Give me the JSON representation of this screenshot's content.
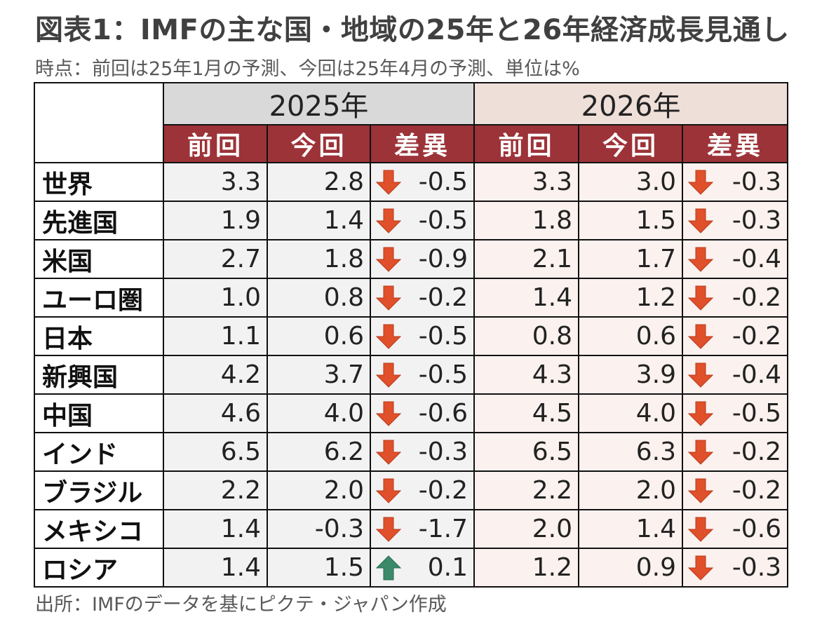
{
  "title": "図表1：IMFの主な国・地域の25年と26年経済成長見通し",
  "subtitle": "時点：前回は25年1月の予測、今回は25年4月の予測、単位は%",
  "source": "出所：IMFのデータを基にピクテ・ジャパン作成",
  "colors": {
    "header_red": "#9c3338",
    "year2025_bg": "#d9d9d9",
    "year2026_bg": "#eedfd8",
    "down_arrow": "#e0502a",
    "up_arrow": "#3a8a6a"
  },
  "chart_data": {
    "type": "table",
    "years": [
      "2025年",
      "2026年"
    ],
    "columns": [
      "前回",
      "今回",
      "差異"
    ],
    "rows": [
      {
        "name": "世界",
        "y2025": {
          "prev": "3.3",
          "curr": "2.8",
          "diff": "-0.5",
          "dir": "down"
        },
        "y2026": {
          "prev": "3.3",
          "curr": "3.0",
          "diff": "-0.3",
          "dir": "down"
        }
      },
      {
        "name": "先進国",
        "y2025": {
          "prev": "1.9",
          "curr": "1.4",
          "diff": "-0.5",
          "dir": "down"
        },
        "y2026": {
          "prev": "1.8",
          "curr": "1.5",
          "diff": "-0.3",
          "dir": "down"
        }
      },
      {
        "name": "米国",
        "y2025": {
          "prev": "2.7",
          "curr": "1.8",
          "diff": "-0.9",
          "dir": "down"
        },
        "y2026": {
          "prev": "2.1",
          "curr": "1.7",
          "diff": "-0.4",
          "dir": "down"
        }
      },
      {
        "name": "ユーロ圏",
        "y2025": {
          "prev": "1.0",
          "curr": "0.8",
          "diff": "-0.2",
          "dir": "down"
        },
        "y2026": {
          "prev": "1.4",
          "curr": "1.2",
          "diff": "-0.2",
          "dir": "down"
        }
      },
      {
        "name": "日本",
        "y2025": {
          "prev": "1.1",
          "curr": "0.6",
          "diff": "-0.5",
          "dir": "down"
        },
        "y2026": {
          "prev": "0.8",
          "curr": "0.6",
          "diff": "-0.2",
          "dir": "down"
        }
      },
      {
        "name": "新興国",
        "y2025": {
          "prev": "4.2",
          "curr": "3.7",
          "diff": "-0.5",
          "dir": "down"
        },
        "y2026": {
          "prev": "4.3",
          "curr": "3.9",
          "diff": "-0.4",
          "dir": "down"
        }
      },
      {
        "name": "中国",
        "y2025": {
          "prev": "4.6",
          "curr": "4.0",
          "diff": "-0.6",
          "dir": "down"
        },
        "y2026": {
          "prev": "4.5",
          "curr": "4.0",
          "diff": "-0.5",
          "dir": "down"
        }
      },
      {
        "name": "インド",
        "y2025": {
          "prev": "6.5",
          "curr": "6.2",
          "diff": "-0.3",
          "dir": "down"
        },
        "y2026": {
          "prev": "6.5",
          "curr": "6.3",
          "diff": "-0.2",
          "dir": "down"
        }
      },
      {
        "name": "ブラジル",
        "y2025": {
          "prev": "2.2",
          "curr": "2.0",
          "diff": "-0.2",
          "dir": "down"
        },
        "y2026": {
          "prev": "2.2",
          "curr": "2.0",
          "diff": "-0.2",
          "dir": "down"
        }
      },
      {
        "name": "メキシコ",
        "y2025": {
          "prev": "1.4",
          "curr": "-0.3",
          "diff": "-1.7",
          "dir": "down"
        },
        "y2026": {
          "prev": "2.0",
          "curr": "1.4",
          "diff": "-0.6",
          "dir": "down"
        }
      },
      {
        "name": "ロシア",
        "y2025": {
          "prev": "1.4",
          "curr": "1.5",
          "diff": "0.1",
          "dir": "up"
        },
        "y2026": {
          "prev": "1.2",
          "curr": "0.9",
          "diff": "-0.3",
          "dir": "down"
        }
      }
    ]
  }
}
